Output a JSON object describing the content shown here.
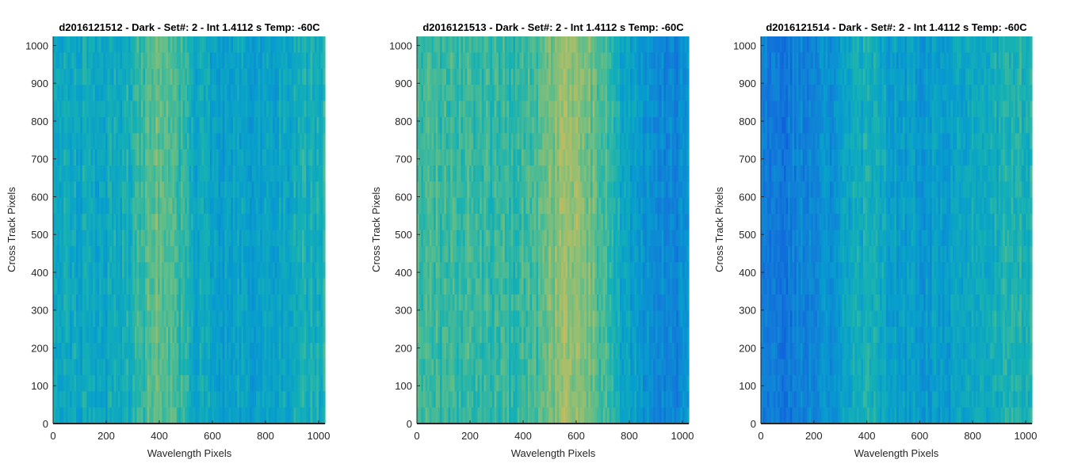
{
  "window": {
    "title": ""
  },
  "chart_data": [
    {
      "type": "heatmap",
      "title": "d2016121512 - Dark - Set#: 2 - Int 1.4112 s Temp: -60C",
      "xlabel": "Wavelength Pixels",
      "ylabel": "Cross Track Pixels",
      "xlim": [
        0,
        1024
      ],
      "ylim": [
        0,
        1024
      ],
      "xticks": [
        0,
        200,
        400,
        600,
        800,
        1000
      ],
      "yticks": [
        0,
        100,
        200,
        300,
        400,
        500,
        600,
        700,
        800,
        900,
        1000
      ],
      "colormap": "parula",
      "grid": false,
      "column_profile": {
        "x": [
          0,
          60,
          120,
          200,
          280,
          340,
          400,
          460,
          540,
          620,
          700,
          780,
          860,
          940,
          1024
        ],
        "level": [
          0.45,
          0.44,
          0.45,
          0.43,
          0.48,
          0.58,
          0.65,
          0.58,
          0.45,
          0.4,
          0.42,
          0.4,
          0.42,
          0.48,
          0.5
        ]
      }
    },
    {
      "type": "heatmap",
      "title": "d2016121513 - Dark - Set#: 2 - Int 1.4112 s Temp: -60C",
      "xlabel": "Wavelength Pixels",
      "ylabel": "Cross Track Pixels",
      "xlim": [
        0,
        1024
      ],
      "ylim": [
        0,
        1024
      ],
      "xticks": [
        0,
        200,
        400,
        600,
        800,
        1000
      ],
      "yticks": [
        0,
        100,
        200,
        300,
        400,
        500,
        600,
        700,
        800,
        900,
        1000
      ],
      "colormap": "parula",
      "grid": false,
      "column_profile": {
        "x": [
          0,
          60,
          140,
          220,
          300,
          380,
          460,
          520,
          580,
          640,
          700,
          760,
          820,
          900,
          980,
          1024
        ],
        "level": [
          0.58,
          0.56,
          0.55,
          0.56,
          0.55,
          0.54,
          0.6,
          0.68,
          0.74,
          0.68,
          0.58,
          0.48,
          0.38,
          0.32,
          0.3,
          0.32
        ]
      }
    },
    {
      "type": "heatmap",
      "title": "d2016121514 - Dark - Set#: 2 - Int 1.4112 s Temp: -60C",
      "xlabel": "Wavelength Pixels",
      "ylabel": "Cross Track Pixels",
      "xlim": [
        0,
        1024
      ],
      "ylim": [
        0,
        1024
      ],
      "xticks": [
        0,
        200,
        400,
        600,
        800,
        1000
      ],
      "yticks": [
        0,
        100,
        200,
        300,
        400,
        500,
        600,
        700,
        800,
        900,
        1000
      ],
      "colormap": "parula",
      "grid": false,
      "column_profile": {
        "x": [
          0,
          60,
          140,
          220,
          300,
          360,
          420,
          500,
          580,
          660,
          740,
          820,
          900,
          980,
          1024
        ],
        "level": [
          0.26,
          0.24,
          0.26,
          0.3,
          0.38,
          0.48,
          0.46,
          0.4,
          0.38,
          0.4,
          0.42,
          0.44,
          0.48,
          0.52,
          0.5
        ]
      }
    }
  ]
}
